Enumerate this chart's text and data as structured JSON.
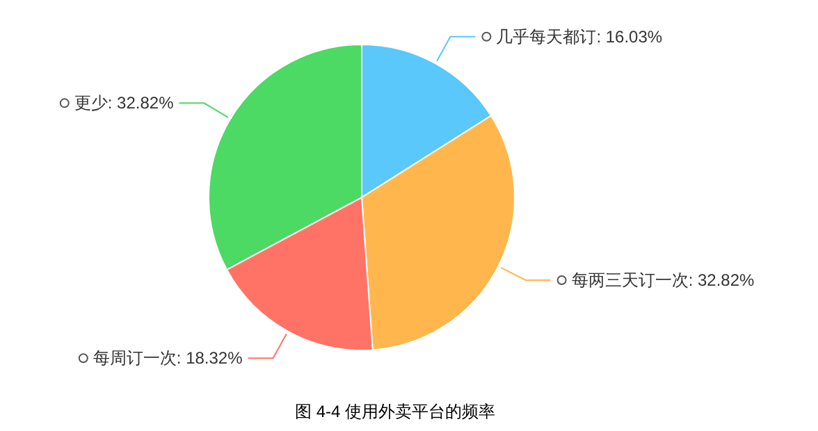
{
  "chart_data": {
    "type": "pie",
    "categories": [
      "几乎每天都订",
      "每两三天订一次",
      "每周订一次",
      "更少"
    ],
    "values": [
      16.03,
      32.82,
      18.32,
      32.82
    ],
    "colors": [
      "#5ac8fa",
      "#ffb74d",
      "#ff7366",
      "#4cd964"
    ],
    "value_labels": [
      ": 16.03%",
      ": 32.82%",
      ": 18.32%",
      ": 32.82%"
    ],
    "annotations": [
      "图 4-4 使用外卖平台的频率"
    ]
  }
}
